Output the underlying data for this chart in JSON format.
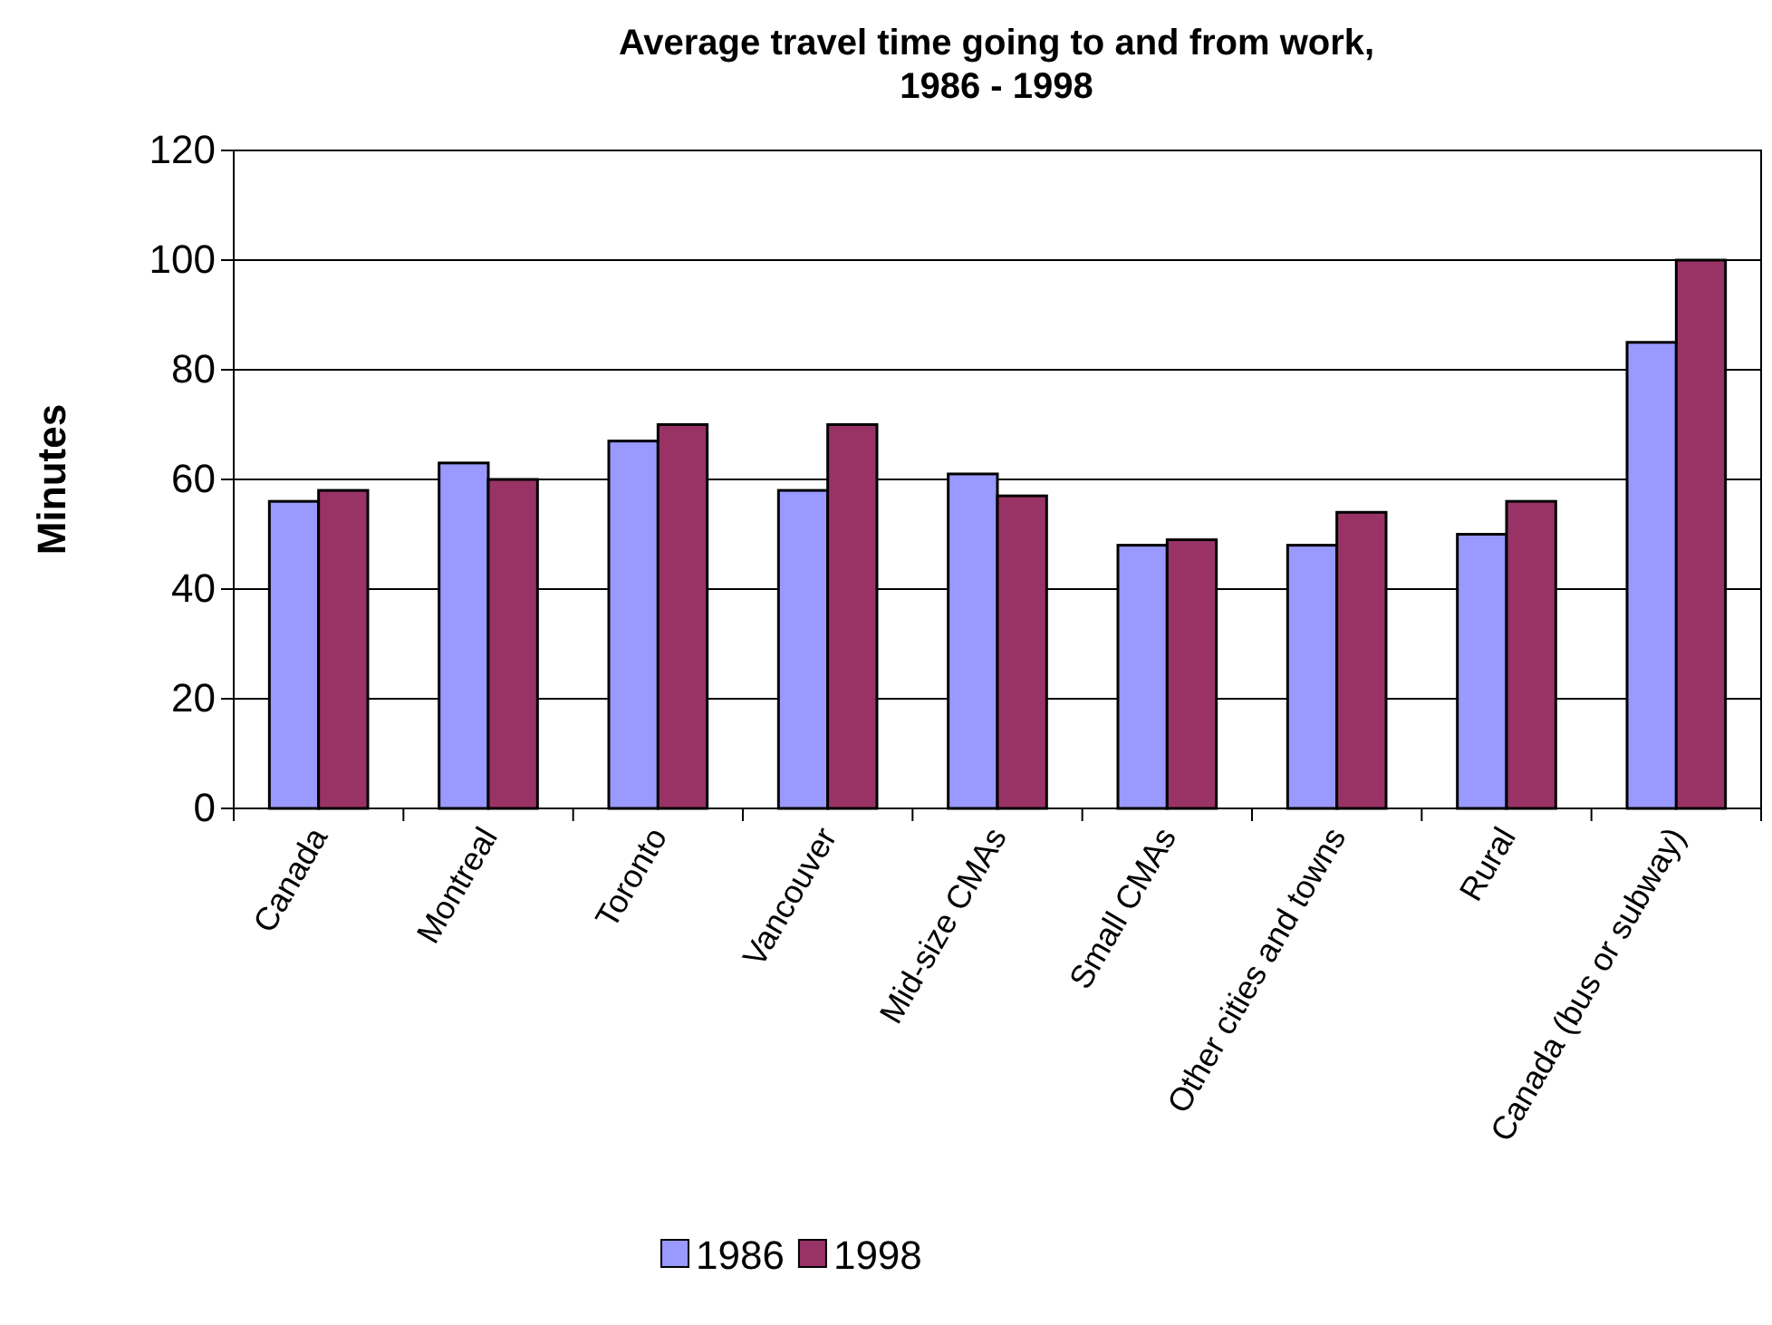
{
  "chart_data": {
    "type": "bar",
    "title": "Average travel time going to and from work,\n1986 - 1998",
    "ylabel": "Minutes",
    "categories": [
      "Canada",
      "Montreal",
      "Toronto",
      "Vancouver",
      "Mid-size CMAs",
      "Small CMAs",
      "Other cities and towns",
      "Rural",
      "Canada (bus or subway)"
    ],
    "series": [
      {
        "name": "1986",
        "color": "#9999ff",
        "values": [
          56,
          63,
          67,
          58,
          61,
          48,
          48,
          50,
          85
        ]
      },
      {
        "name": "1998",
        "color": "#993366",
        "values": [
          58,
          60,
          70,
          70,
          57,
          49,
          54,
          56,
          100
        ]
      }
    ],
    "ylim": [
      0,
      120
    ],
    "yticks": [
      0,
      20,
      40,
      60,
      80,
      100,
      120
    ],
    "grid": "y",
    "legend": "bottom"
  }
}
